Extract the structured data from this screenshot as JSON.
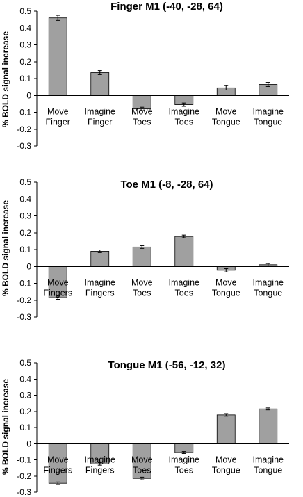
{
  "chart_data": [
    {
      "type": "bar",
      "title": "Finger M1 (-40, -28, 64)",
      "ylabel": "% BOLD signal increase",
      "ylim": [
        -0.3,
        0.5
      ],
      "yticks": [
        "0.5",
        "0.4",
        "0.3",
        "0.2",
        "0.1",
        "0",
        "-0.1",
        "-0.2",
        "-0.3"
      ],
      "categories": [
        [
          "Move",
          "Finger"
        ],
        [
          "Imagine",
          "Finger"
        ],
        [
          "Move",
          "Toes"
        ],
        [
          "Imagine",
          "Toes"
        ],
        [
          "Move",
          "Tongue"
        ],
        [
          "Imagine",
          "Tongue"
        ]
      ],
      "values": [
        0.46,
        0.135,
        -0.08,
        -0.055,
        0.045,
        0.065
      ],
      "errors": [
        0.015,
        0.012,
        0.01,
        0.01,
        0.013,
        0.012
      ],
      "grid": false
    },
    {
      "type": "bar",
      "title": "Toe M1 (-8, -28, 64)",
      "ylabel": "% BOLD signal increase",
      "ylim": [
        -0.3,
        0.5
      ],
      "yticks": [
        "0.5",
        "0.4",
        "0.3",
        "0.2",
        "0.1",
        "0",
        "-0.1",
        "-0.2",
        "-0.3"
      ],
      "categories": [
        [
          "Move",
          "Fingers"
        ],
        [
          "Imagine",
          "Fingers"
        ],
        [
          "Move",
          "Toes"
        ],
        [
          "Imagine",
          "Toes"
        ],
        [
          "Move",
          "Tongue"
        ],
        [
          "Imagine",
          "Tongue"
        ]
      ],
      "values": [
        -0.185,
        0.09,
        0.115,
        0.178,
        -0.023,
        0.01
      ],
      "errors": [
        0.01,
        0.008,
        0.008,
        0.008,
        0.01,
        0.007
      ],
      "grid": false
    },
    {
      "type": "bar",
      "title": "Tongue M1 (-56, -12, 32)",
      "ylabel": "% BOLD signal increase",
      "ylim": [
        -0.3,
        0.5
      ],
      "yticks": [
        "0.5",
        "0.4",
        "0.3",
        "0.2",
        "0.1",
        "0",
        "-0.1",
        "-0.2",
        "-0.3"
      ],
      "categories": [
        [
          "Move",
          "Fingers"
        ],
        [
          "Imagine",
          "Fingers"
        ],
        [
          "Move",
          "Toes"
        ],
        [
          "Imagine",
          "Toes"
        ],
        [
          "Move",
          "Tongue"
        ],
        [
          "Imagine",
          "Tongue"
        ]
      ],
      "values": [
        -0.245,
        -0.125,
        -0.215,
        -0.055,
        0.178,
        0.215
      ],
      "errors": [
        0.008,
        0.008,
        0.008,
        0.006,
        0.008,
        0.006
      ],
      "grid": false
    }
  ]
}
